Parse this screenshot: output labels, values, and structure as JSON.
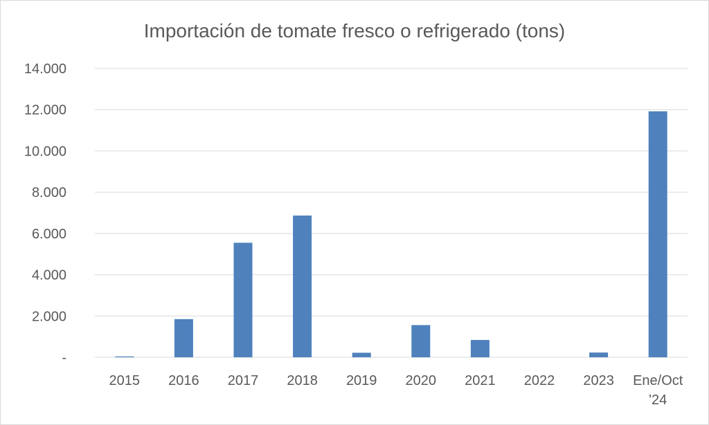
{
  "chart_data": {
    "type": "bar",
    "title": "Importación de tomate fresco o refrigerado (tons)",
    "xlabel": "",
    "ylabel": "",
    "categories": [
      "2015",
      "2016",
      "2017",
      "2018",
      "2019",
      "2020",
      "2021",
      "2022",
      "2023",
      "Ene/Oct '24"
    ],
    "category_lines": [
      [
        "2015"
      ],
      [
        "2016"
      ],
      [
        "2017"
      ],
      [
        "2018"
      ],
      [
        "2019"
      ],
      [
        "2020"
      ],
      [
        "2021"
      ],
      [
        "2022"
      ],
      [
        "2023"
      ],
      [
        "Ene/Oct",
        "'24"
      ]
    ],
    "values": [
      40,
      1850,
      5550,
      6870,
      220,
      1560,
      840,
      0,
      230,
      11920
    ],
    "ylim": [
      0,
      14000
    ],
    "yticks": [
      0,
      2000,
      4000,
      6000,
      8000,
      10000,
      12000,
      14000
    ],
    "ytick_labels": [
      "-",
      "2.000",
      "4.000",
      "6.000",
      "8.000",
      "10.000",
      "12.000",
      "14.000"
    ],
    "grid": true,
    "legend": "none",
    "bar_color": "#4f81bd"
  }
}
